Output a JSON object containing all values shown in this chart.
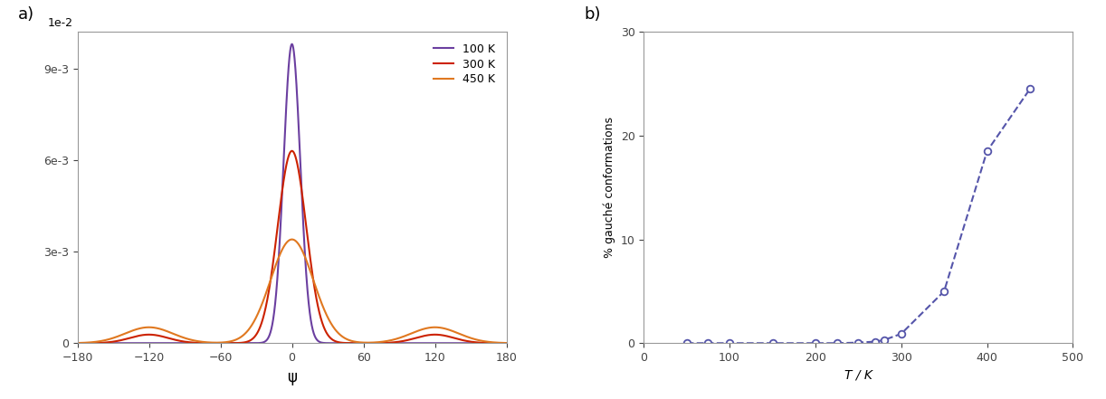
{
  "left_xlabel": "ψ",
  "left_xlim": [
    -180,
    180
  ],
  "left_ylim": [
    0,
    0.0102
  ],
  "left_yticks": [
    0,
    0.003,
    0.006,
    0.009
  ],
  "left_ytick_labels": [
    "0",
    "3e-3",
    "6e-3",
    "9e-3"
  ],
  "left_xticks": [
    -180,
    -120,
    -60,
    0,
    60,
    120,
    180
  ],
  "legend_labels": [
    "100 K",
    "300 K",
    "450 K"
  ],
  "line_colors_left": [
    "#6b3fa0",
    "#cc2200",
    "#e07820"
  ],
  "right_xlabel": "T / K",
  "right_ylabel": "% gauché conformations",
  "right_xlim": [
    0,
    500
  ],
  "right_ylim": [
    0,
    30
  ],
  "right_yticks": [
    0,
    10,
    20,
    30
  ],
  "right_xticks": [
    0,
    100,
    200,
    300,
    400,
    500
  ],
  "gauche_T": [
    50,
    75,
    100,
    150,
    200,
    225,
    250,
    270,
    280,
    300,
    350,
    400,
    450
  ],
  "gauche_pct": [
    0.0,
    0.0,
    0.0,
    0.0,
    0.0,
    0.0,
    0.05,
    0.15,
    0.3,
    0.9,
    5.0,
    18.5,
    24.5
  ],
  "right_line_color": "#5555aa",
  "dist_100K": {
    "trans_sigma": 7,
    "trans_amp": 0.0098
  },
  "dist_300K": {
    "trans_sigma": 12,
    "trans_amp": 0.0063,
    "gauche_mu": 120,
    "gauche_sigma": 16,
    "gauche_amp": 0.00028
  },
  "dist_450K": {
    "trans_sigma": 18,
    "trans_amp": 0.0034,
    "gauche_mu": 120,
    "gauche_sigma": 20,
    "gauche_amp": 0.00052
  }
}
